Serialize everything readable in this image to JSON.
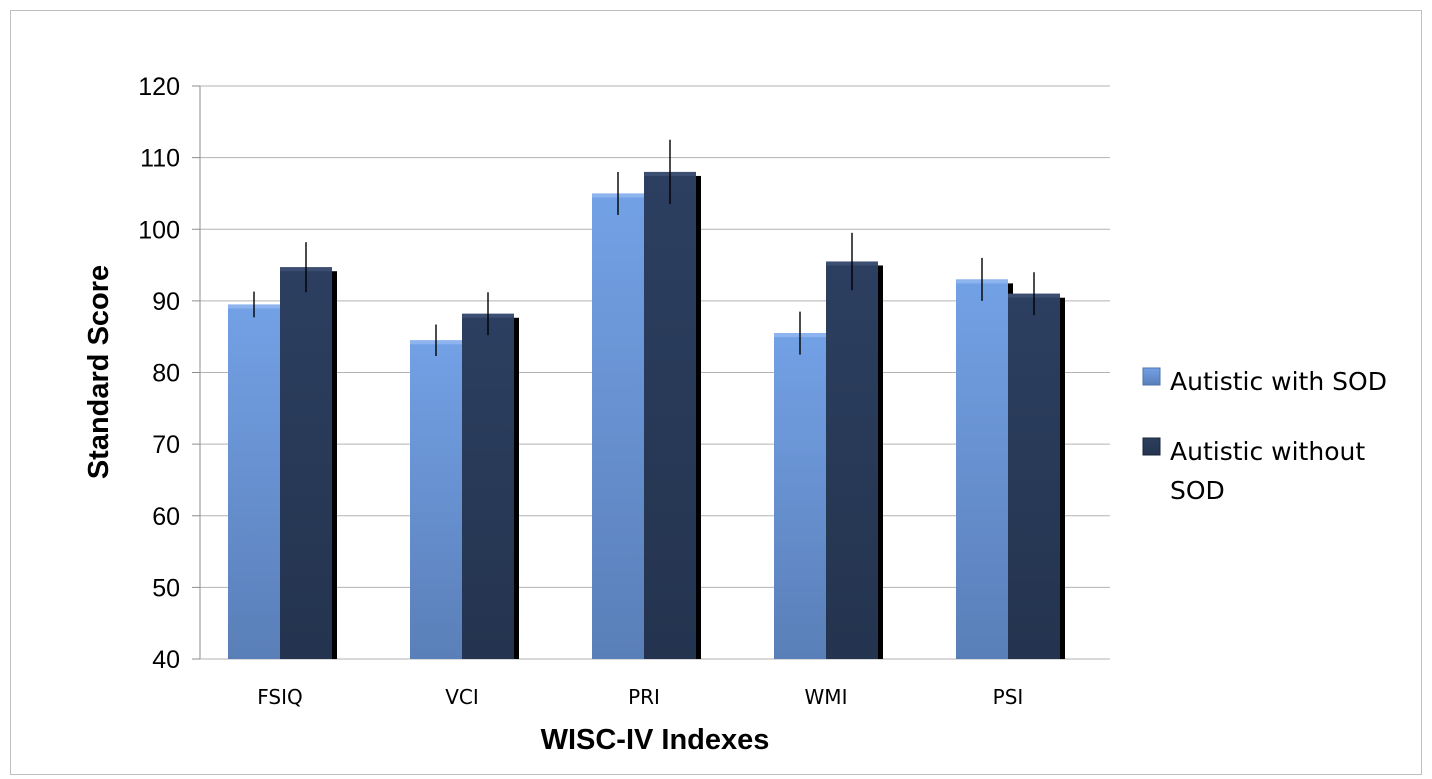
{
  "chart_data": {
    "type": "bar",
    "title": "",
    "xlabel": "WISC-IV Indexes",
    "ylabel": "Standard Score",
    "ylim": [
      40,
      120
    ],
    "yticks": [
      40,
      50,
      60,
      70,
      80,
      90,
      100,
      110,
      120
    ],
    "grid": true,
    "legend_position": "right",
    "categories": [
      "FSIQ",
      "VCI",
      "PRI",
      "WMI",
      "PSI"
    ],
    "series": [
      {
        "name": "Autistic with SOD",
        "color": "#6f9be0",
        "values": [
          89.5,
          84.5,
          105,
          85.5,
          93
        ],
        "error": [
          1.8,
          2.2,
          3,
          3,
          3
        ]
      },
      {
        "name": "Autistic without SOD",
        "color": "#293a5a",
        "values": [
          94.7,
          88.2,
          108,
          95.5,
          91
        ],
        "error": [
          3.5,
          3,
          4.5,
          4,
          3
        ]
      }
    ],
    "legend_lines": [
      [
        "Autistic with SOD"
      ],
      [
        "Autistic without",
        "SOD"
      ]
    ]
  }
}
